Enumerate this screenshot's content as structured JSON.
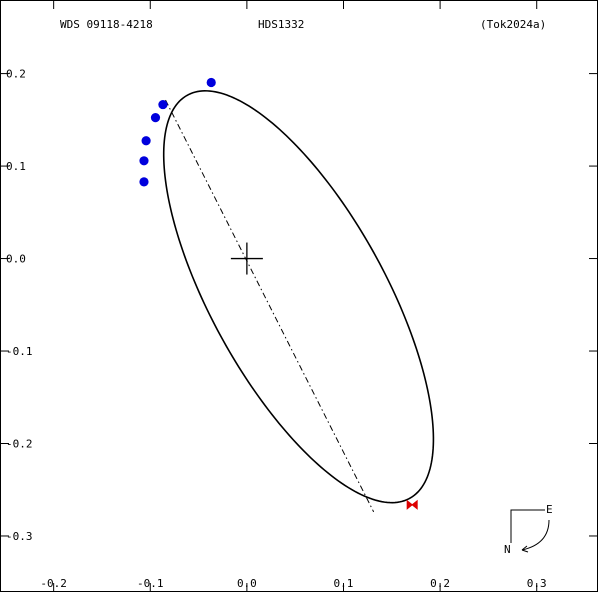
{
  "header": {
    "left": "WDS 09118-4218",
    "center": "HDS1332",
    "right": "(Tok2024a)"
  },
  "compass": {
    "east": "E",
    "north": "N"
  },
  "colors": {
    "frame": "#000000",
    "orbit": "#000000",
    "observations": "#0000dd",
    "current_marker": "#dd0000"
  },
  "chart_data": {
    "type": "scatter",
    "title": "",
    "xlabel": "",
    "ylabel": "",
    "xlim": [
      -0.2545,
      0.3624
    ],
    "ylim": [
      -0.3595,
      0.2785
    ],
    "grid": false,
    "x_ticks": [
      {
        "v": -0.2,
        "label": "-0.2"
      },
      {
        "v": -0.1,
        "label": "-0.1"
      },
      {
        "v": 0.0,
        "label": "0.0"
      },
      {
        "v": 0.1,
        "label": "0.1"
      },
      {
        "v": 0.2,
        "label": "0.2"
      },
      {
        "v": 0.3,
        "label": "0.3"
      }
    ],
    "y_ticks": [
      {
        "v": 0.2,
        "label": "0.2"
      },
      {
        "v": 0.1,
        "label": "0.1"
      },
      {
        "v": 0.0,
        "label": "0.0"
      },
      {
        "v": -0.1,
        "label": "-0.1"
      },
      {
        "v": -0.2,
        "label": "-0.2"
      },
      {
        "v": -0.3,
        "label": "-0.3"
      }
    ],
    "primary": {
      "x": 0.0,
      "y": 0.0
    },
    "orbit": {
      "center": [
        0.0535,
        -0.0413
      ],
      "semi_axis_a": 0.2465,
      "semi_axis_b": 0.0911,
      "major_axis_angle_deg": -62.5
    },
    "line_of_apsides": [
      [
        -0.0842,
        0.1714
      ],
      [
        0.1312,
        -0.2739
      ]
    ],
    "observations": [
      {
        "x": -0.0369,
        "y": 0.1904
      },
      {
        "x": -0.0869,
        "y": 0.1665
      },
      {
        "x": -0.0946,
        "y": 0.1524
      },
      {
        "x": -0.1043,
        "y": 0.1274
      },
      {
        "x": -0.1065,
        "y": 0.1057
      },
      {
        "x": -0.1065,
        "y": 0.0829
      }
    ],
    "current_position": {
      "x": 0.1711,
      "y": -0.2663
    }
  }
}
